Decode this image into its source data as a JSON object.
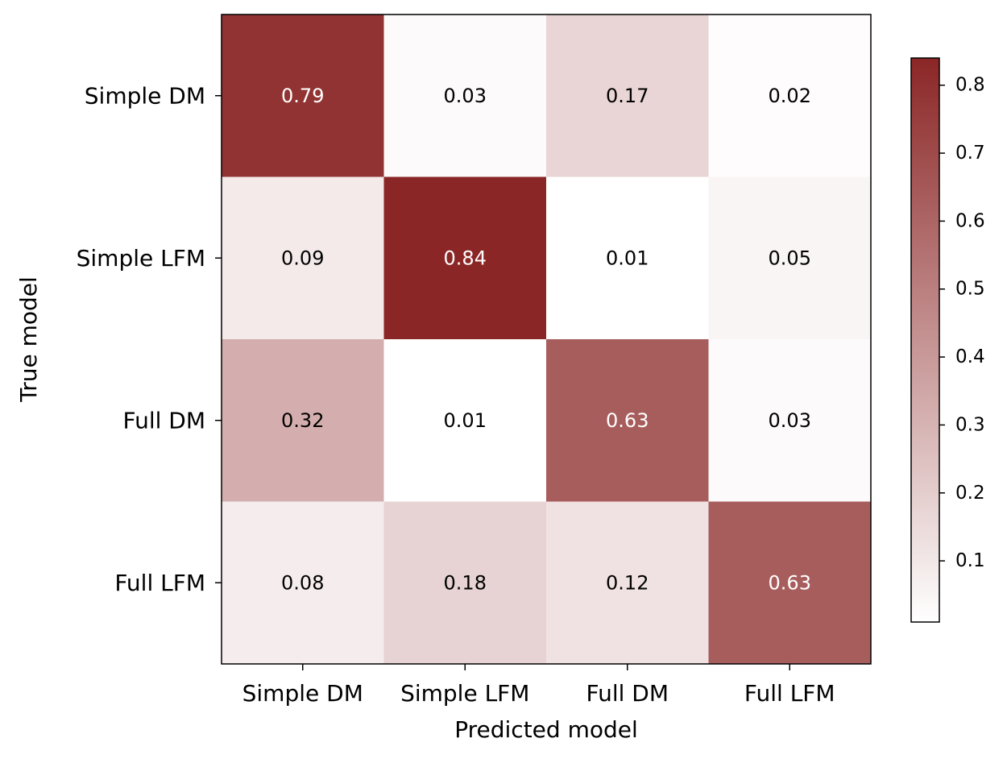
{
  "chart_data": {
    "type": "heatmap",
    "xlabel": "Predicted model",
    "ylabel": "True model",
    "x_categories": [
      "Simple DM",
      "Simple LFM",
      "Full DM",
      "Full LFM"
    ],
    "y_categories": [
      "Simple DM",
      "Simple LFM",
      "Full DM",
      "Full LFM"
    ],
    "values": [
      [
        0.79,
        0.03,
        0.17,
        0.02
      ],
      [
        0.09,
        0.84,
        0.01,
        0.05
      ],
      [
        0.32,
        0.01,
        0.63,
        0.03
      ],
      [
        0.08,
        0.18,
        0.12,
        0.63
      ]
    ],
    "value_labels": [
      [
        "0.79",
        "0.03",
        "0.17",
        "0.02"
      ],
      [
        "0.09",
        "0.84",
        "0.01",
        "0.05"
      ],
      [
        "0.32",
        "0.01",
        "0.63",
        "0.03"
      ],
      [
        "0.08",
        "0.18",
        "0.12",
        "0.63"
      ]
    ],
    "colorbar": {
      "vmin": 0.01,
      "vmax": 0.84,
      "ticks": [
        0.1,
        0.2,
        0.3,
        0.4,
        0.5,
        0.6,
        0.7,
        0.8
      ],
      "tick_labels": [
        "0.1",
        "0.2",
        "0.3",
        "0.4",
        "0.5",
        "0.6",
        "0.7",
        "0.8"
      ],
      "color_low": "#ffffff",
      "color_high": "#8b2626"
    },
    "annotation_text_colors": {
      "dark_cell": "#ffffff",
      "light_cell": "#000000"
    },
    "axes_color": "#000000",
    "grid": false
  }
}
